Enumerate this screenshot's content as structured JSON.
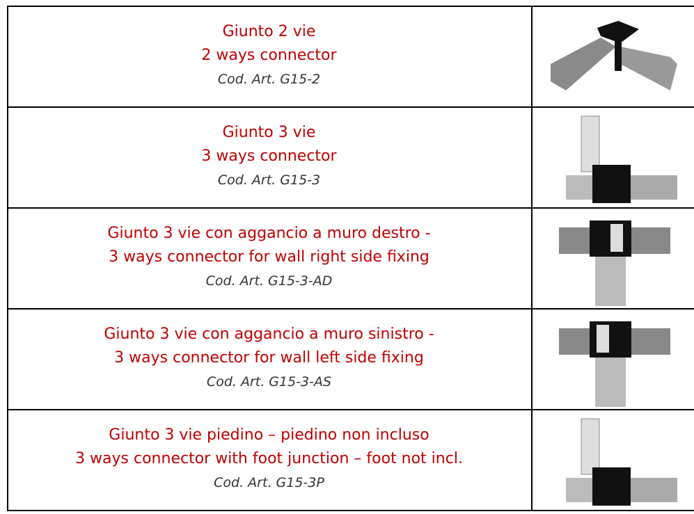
{
  "table": {
    "rows": [
      {
        "title_it": "Giunto 2 vie",
        "title_en": "2 ways connector",
        "code": "Cod. Art. G15-2"
      },
      {
        "title_it": "Giunto 3 vie",
        "title_en": "3 ways connector",
        "code": "Cod. Art. G15-3"
      },
      {
        "title_it": "Giunto 3 vie con aggancio a muro destro -",
        "title_en": "3 ways connector for wall right side fixing",
        "code": "Cod. Art. G15-3-AD"
      },
      {
        "title_it": "Giunto 3 vie con aggancio a muro sinistro -",
        "title_en": "3 ways connector for wall left side fixing",
        "code": "Cod. Art. G15-3-AS"
      },
      {
        "title_it": "Giunto 3 vie piedino – piedino non incluso",
        "title_en": "3 ways connector with foot junction – foot not incl.",
        "code": "Cod. Art. G15-3P"
      }
    ]
  }
}
